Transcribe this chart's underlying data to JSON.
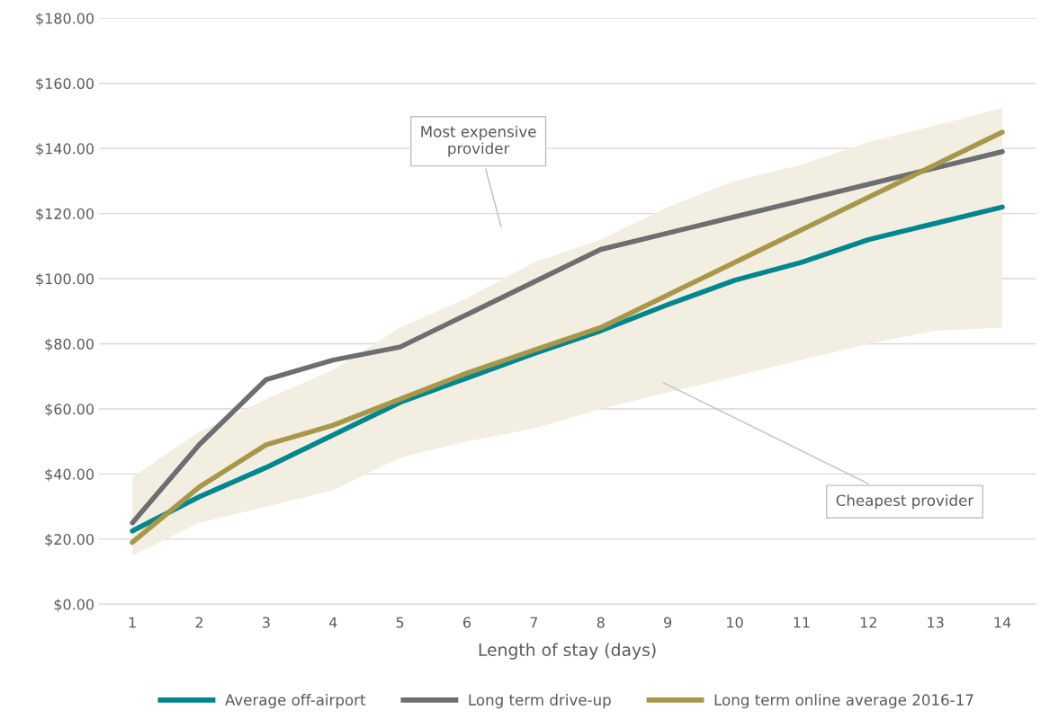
{
  "chart_data": {
    "type": "line",
    "xlabel": "Length of stay (days)",
    "categories": [
      "1",
      "2",
      "3",
      "4",
      "5",
      "6",
      "7",
      "8",
      "9",
      "10",
      "11",
      "12",
      "13",
      "14"
    ],
    "series": [
      {
        "type": "area",
        "color": "#f2eee1",
        "lower": [
          15,
          25,
          30,
          35,
          45,
          50,
          54,
          60,
          65,
          70,
          75,
          80,
          84,
          85
        ],
        "upper": [
          39,
          53,
          63,
          72,
          85,
          94,
          105,
          112,
          122,
          130,
          135,
          142,
          147,
          152.5
        ],
        "values": [
          null,
          null,
          null,
          null,
          null,
          null,
          null,
          null,
          null,
          null,
          null,
          null,
          null,
          null
        ]
      },
      {
        "name": "Average off-airport",
        "color": "#00868f",
        "values": [
          22.5,
          33,
          42,
          52,
          62,
          69.5,
          77,
          84,
          92,
          99.5,
          105,
          112,
          117,
          122
        ]
      },
      {
        "name": "Long term drive-up",
        "color": "#6d6e71",
        "values": [
          25,
          49,
          69,
          75,
          79,
          89,
          99,
          109,
          114,
          119,
          124,
          129,
          134,
          139
        ]
      },
      {
        "name": "Long term online average 2016-17",
        "color": "#a8974a",
        "values": [
          19,
          36,
          49,
          55,
          63,
          71,
          78,
          85,
          95,
          105,
          115,
          125,
          135,
          145
        ]
      }
    ],
    "ylim": [
      0,
      180
    ],
    "yticks": [
      {
        "value": 0,
        "label": "$0.00"
      },
      {
        "value": 20,
        "label": "$20.00"
      },
      {
        "value": 40,
        "label": "$40.00"
      },
      {
        "value": 60,
        "label": "$60.00"
      },
      {
        "value": 80,
        "label": "$80.00"
      },
      {
        "value": 100,
        "label": "$100.00"
      },
      {
        "value": 120,
        "label": "$120.00"
      },
      {
        "value": 140,
        "label": "$140.00"
      },
      {
        "value": 160,
        "label": "$160.00"
      },
      {
        "value": 180,
        "label": "$180.00"
      }
    ],
    "annotations": [
      "Most expensive\nprovider",
      "Cheapest provider"
    ],
    "grid": "y",
    "legend": "bottom",
    "line_style": "solid",
    "marker": "none"
  }
}
